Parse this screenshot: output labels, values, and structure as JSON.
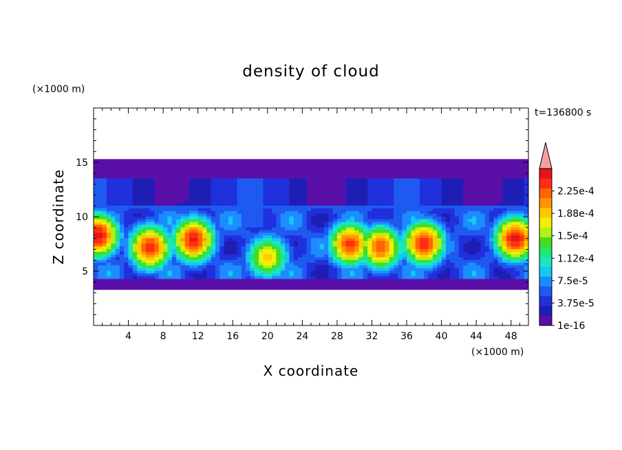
{
  "chart_data": {
    "type": "heatmap",
    "title": "density of cloud",
    "xlabel": "X coordinate",
    "ylabel": "Z coordinate",
    "x_unit": "(×1000 m)",
    "y_unit": "(×1000 m)",
    "time_label": "t=136800 s",
    "xlim": [
      0,
      50
    ],
    "ylim": [
      0,
      20
    ],
    "x_ticks": [
      "4",
      "8",
      "12",
      "16",
      "20",
      "24",
      "28",
      "32",
      "36",
      "40",
      "44",
      "48"
    ],
    "y_ticks": [
      "5",
      "10",
      "15"
    ],
    "cloud_layer": {
      "z_base": 3.3,
      "z_top": 15.3
    },
    "colorbar": {
      "levels": [
        "1e-16",
        "3.75e-5",
        "7.5e-5",
        "1.12e-4",
        "1.5e-4",
        "1.88e-4",
        "2.25e-4"
      ],
      "colors": [
        "#5a0fa8",
        "#1f1eb4",
        "#2030dc",
        "#1e5af0",
        "#1e8cff",
        "#14c8f0",
        "#1ee6be",
        "#1ee678",
        "#46dc1e",
        "#b4f014",
        "#f0f00a",
        "#ffc800",
        "#ff9600",
        "#ff6400",
        "#ff2d14",
        "#e61414"
      ],
      "extend_color": "#f4a0a0"
    },
    "plumes": [
      {
        "x": 0.5,
        "z": 8.3,
        "intensity": 0.97
      },
      {
        "x": 6.5,
        "z": 7.2,
        "intensity": 0.92
      },
      {
        "x": 11.5,
        "z": 7.9,
        "intensity": 0.95
      },
      {
        "x": 20.0,
        "z": 6.3,
        "intensity": 0.7
      },
      {
        "x": 29.5,
        "z": 7.5,
        "intensity": 0.9
      },
      {
        "x": 33.0,
        "z": 7.2,
        "intensity": 0.86
      },
      {
        "x": 38.0,
        "z": 7.6,
        "intensity": 0.93
      },
      {
        "x": 48.5,
        "z": 8.0,
        "intensity": 0.96
      }
    ]
  }
}
